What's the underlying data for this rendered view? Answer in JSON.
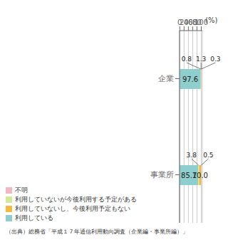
{
  "chart_data": {
    "type": "bar",
    "orientation": "horizontal",
    "stacked": true,
    "categories": [
      "企業",
      "事業所"
    ],
    "series": [
      {
        "name": "利用している",
        "color": "#8ECECE",
        "values": [
          97.6,
          85.7
        ]
      },
      {
        "name": "利用していないが今後利用する予定がある",
        "color": "#D4E89A",
        "values": [
          0.8,
          3.8
        ]
      },
      {
        "name": "利用していないし、今後利用予定もない",
        "color": "#F5B942",
        "values": [
          1.3,
          10.0
        ],
        "value_labels": [
          "1.3",
          "10.0"
        ]
      },
      {
        "name": "不明",
        "color": "#F0B8C0",
        "values": [
          0.3,
          0.5
        ]
      }
    ],
    "xlim": [
      -1,
      105
    ],
    "xticks": [
      0,
      20,
      40,
      60,
      80,
      100
    ],
    "grid": true,
    "data_labels": true,
    "legend": "bottom",
    "annotations": [
      "(%)"
    ],
    "caption": "（出典）総務省「平成１７年通信利用動向調査（企業編・事業所編）」"
  }
}
